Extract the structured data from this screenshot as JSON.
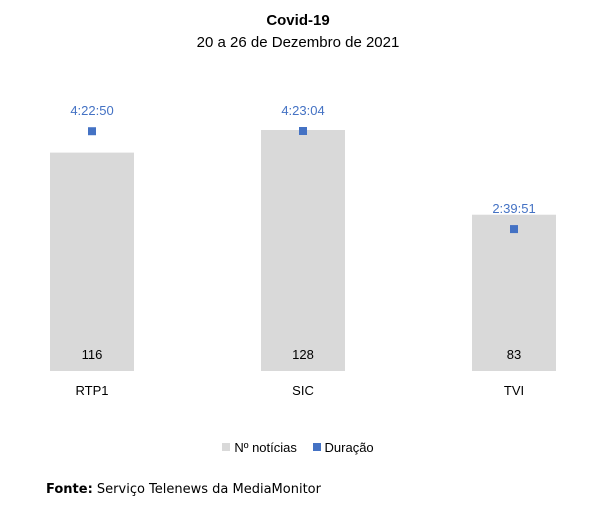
{
  "chart_data": {
    "type": "bar",
    "title": "Covid-19",
    "subtitle": "20 a 26 de Dezembro de 2021",
    "categories": [
      "RTP1",
      "SIC",
      "TVI"
    ],
    "series": [
      {
        "name": "Nº notícias",
        "kind": "bar",
        "values": [
          116,
          128,
          83
        ]
      },
      {
        "name": "Duração",
        "kind": "marker",
        "values": [
          "4:22:50",
          "4:23:04",
          "2:39:51"
        ],
        "seconds": [
          15770,
          15784,
          9591
        ]
      }
    ],
    "xlabel": "",
    "ylabel": "",
    "ylim": [
      0,
      128
    ],
    "grid": false,
    "legend_position": "bottom",
    "colors": {
      "bar": "#d9d9d9",
      "marker": "#4472c4",
      "marker_label": "#4472c4"
    }
  },
  "source": {
    "label": "Fonte:",
    "text": " Serviço Telenews da MediaMonitor"
  }
}
